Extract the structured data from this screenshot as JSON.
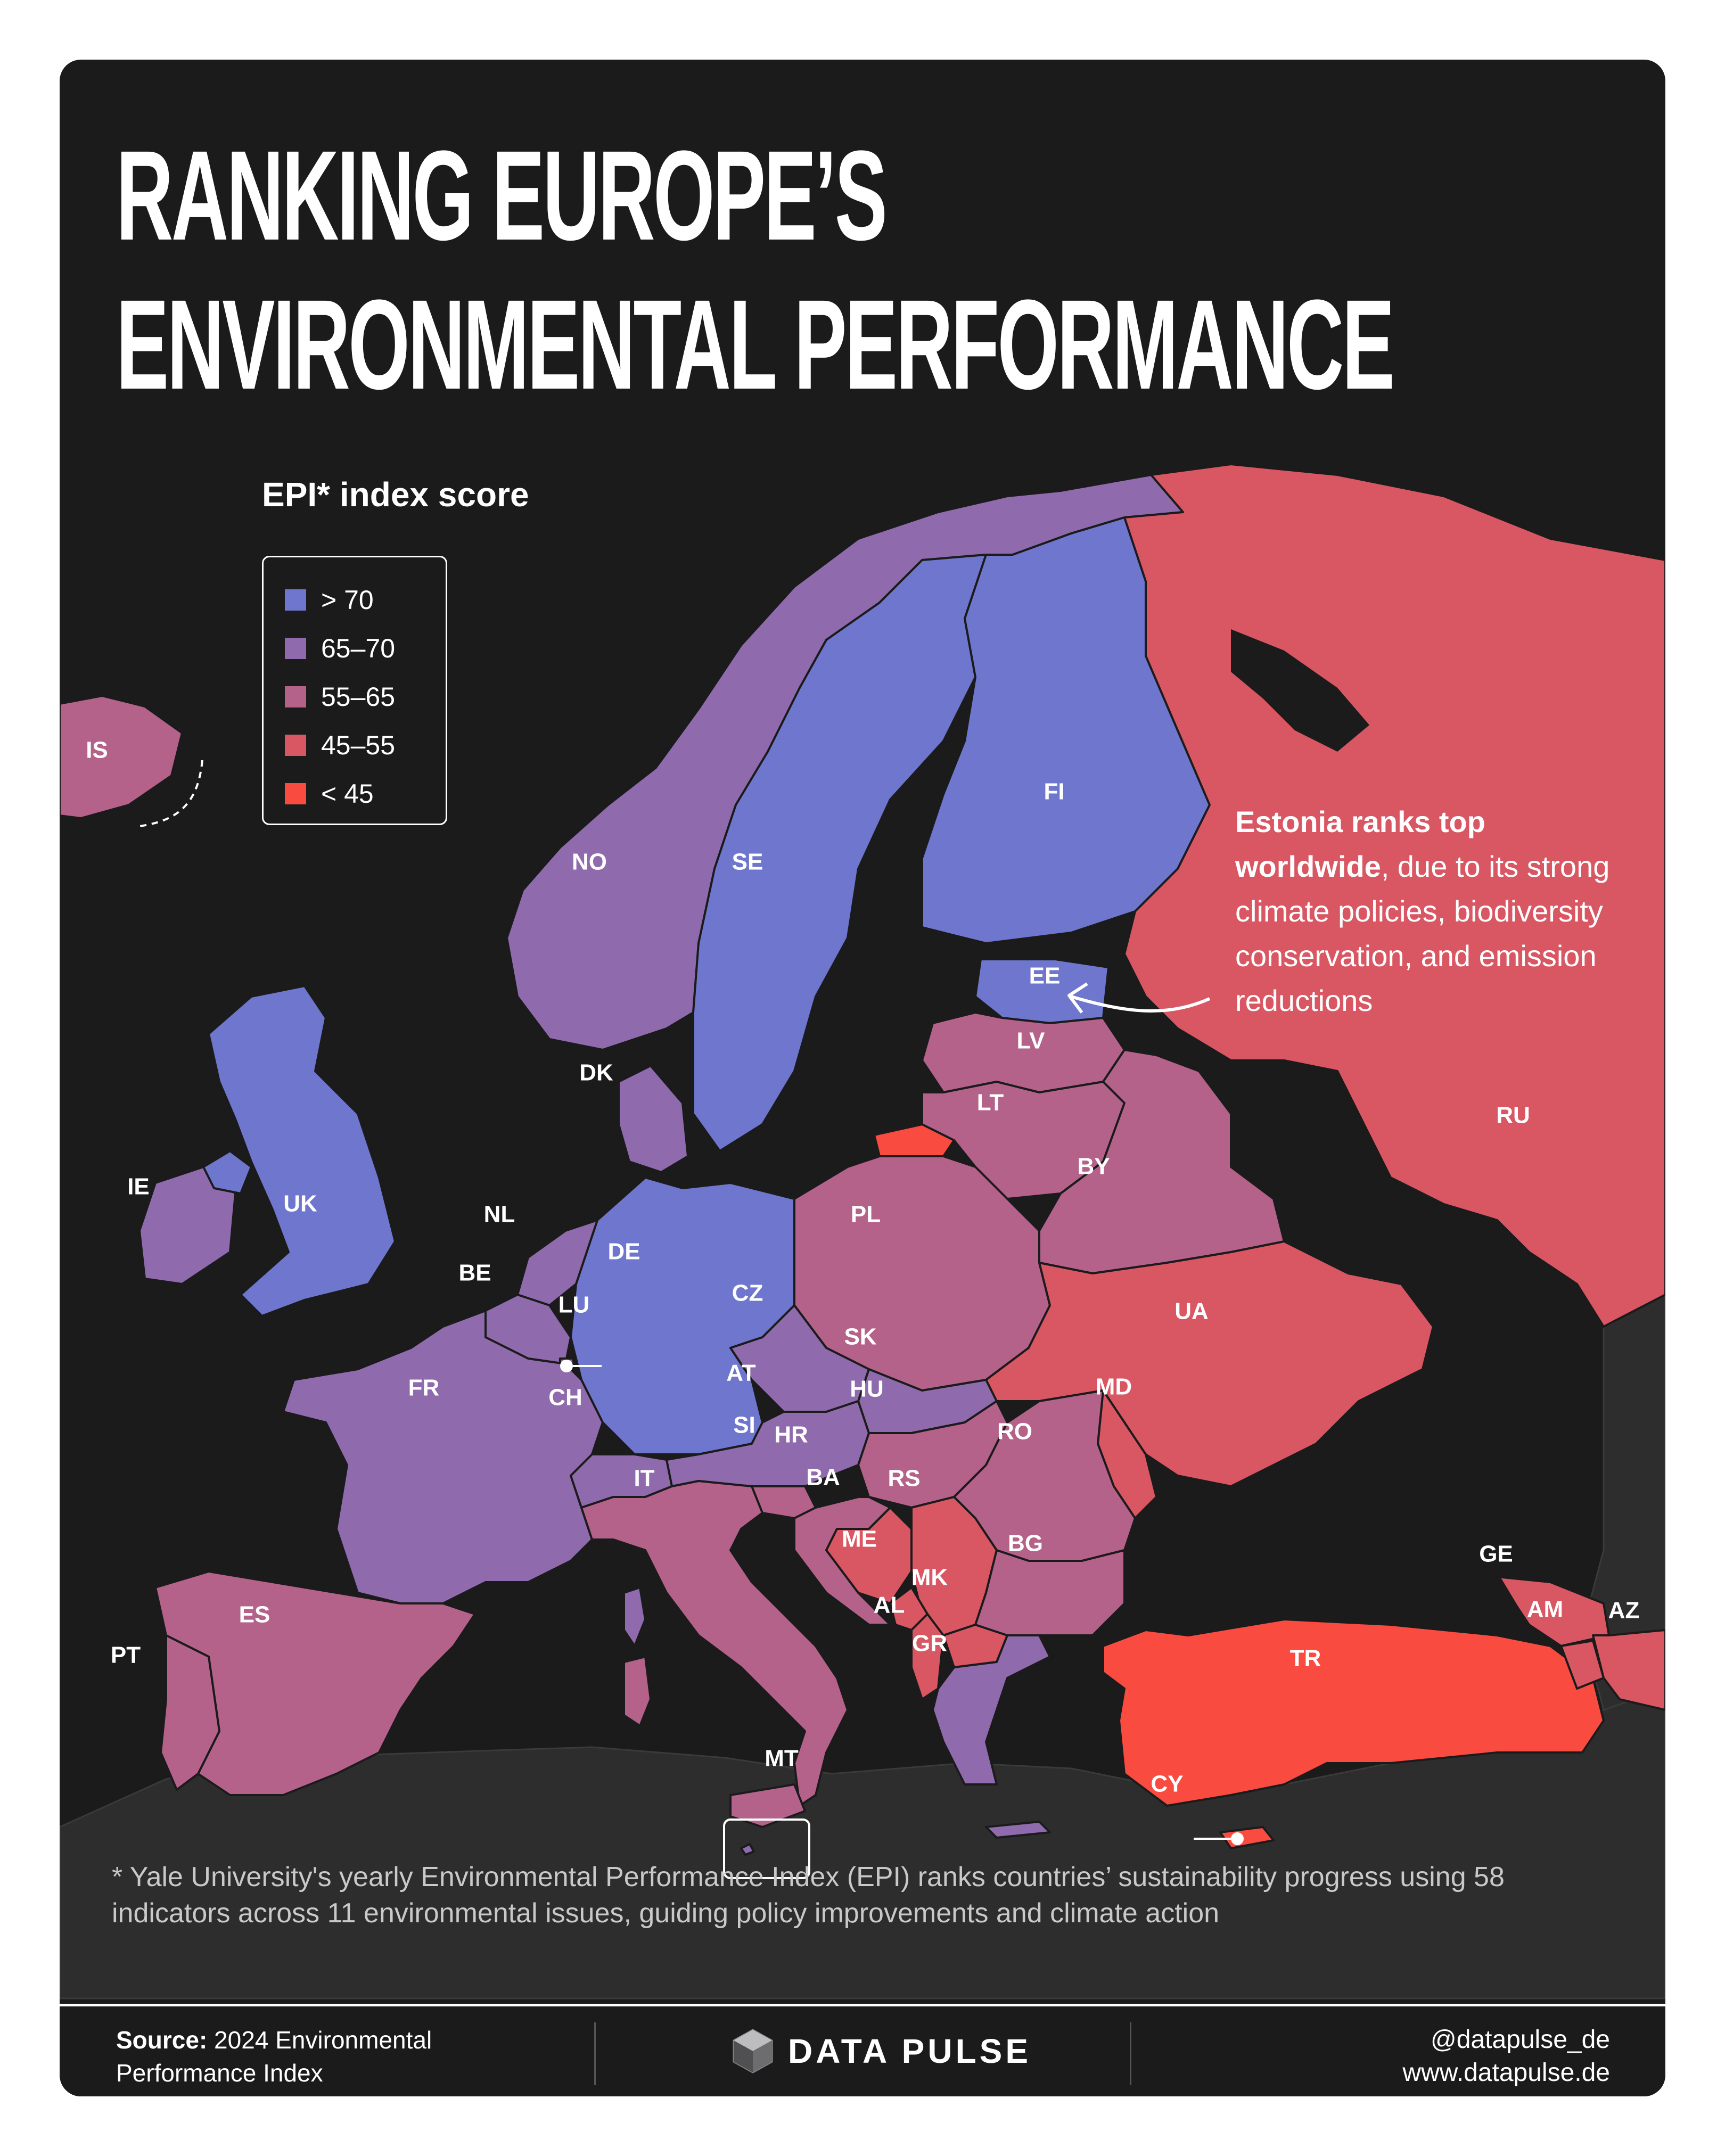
{
  "title": {
    "line1": "RANKING EUROPE’S",
    "line2": "ENVIRONMENTAL PERFORMANCE"
  },
  "legend": {
    "title": "EPI* index score",
    "items": [
      {
        "label": "> 70",
        "color": "#6e76cd"
      },
      {
        "label": "65–70",
        "color": "#8f6aad"
      },
      {
        "label": "55–65",
        "color": "#b4628a"
      },
      {
        "label": "45–55",
        "color": "#d95663"
      },
      {
        "label": "< 45",
        "color": "#fa4b40"
      }
    ]
  },
  "colors": {
    "over70": "#6e76cd",
    "c65_70": "#8f6aad",
    "c55_65": "#b4628a",
    "c45_55": "#d95663",
    "under45": "#fa4b40",
    "background": "#1b1b1c",
    "outside_land": "#2d2d2e"
  },
  "countries": {
    "IS": "IS",
    "NO": "NO",
    "SE": "SE",
    "FI": "FI",
    "EE": "EE",
    "LV": "LV",
    "LT": "LT",
    "DK": "DK",
    "IE": "IE",
    "UK": "UK",
    "NL": "NL",
    "BE": "BE",
    "LU": "LU",
    "DE": "DE",
    "PL": "PL",
    "BY": "BY",
    "RU": "RU",
    "UA": "UA",
    "CZ": "CZ",
    "SK": "SK",
    "AT": "AT",
    "CH": "CH",
    "FR": "FR",
    "HU": "HU",
    "SI": "SI",
    "HR": "HR",
    "BA": "BA",
    "RS": "RS",
    "RO": "RO",
    "MD": "MD",
    "IT": "IT",
    "ME": "ME",
    "AL": "AL",
    "MK": "MK",
    "BG": "BG",
    "GR": "GR",
    "ES": "ES",
    "PT": "PT",
    "MT": "MT",
    "TR": "TR",
    "CY": "CY",
    "GE": "GE",
    "AM": "AM",
    "AZ": "AZ"
  },
  "annotation": {
    "bold": "Estonia ranks top worldwide",
    "text": ", due to its strong climate policies, biodiversity conservation, and emission reductions"
  },
  "footnote": "* Yale University's yearly Environmental Performance Index (EPI) ranks countries’ sustainability progress using 58 indicators across 11 environmental issues, guiding policy improvements and climate action",
  "footer": {
    "source_label": "Source:",
    "source_line1": " 2024 Environmental",
    "source_line2": "Performance Index",
    "brand": "DATA PULSE",
    "handle": "@datapulse_de",
    "website": "www.datapulse.de"
  }
}
